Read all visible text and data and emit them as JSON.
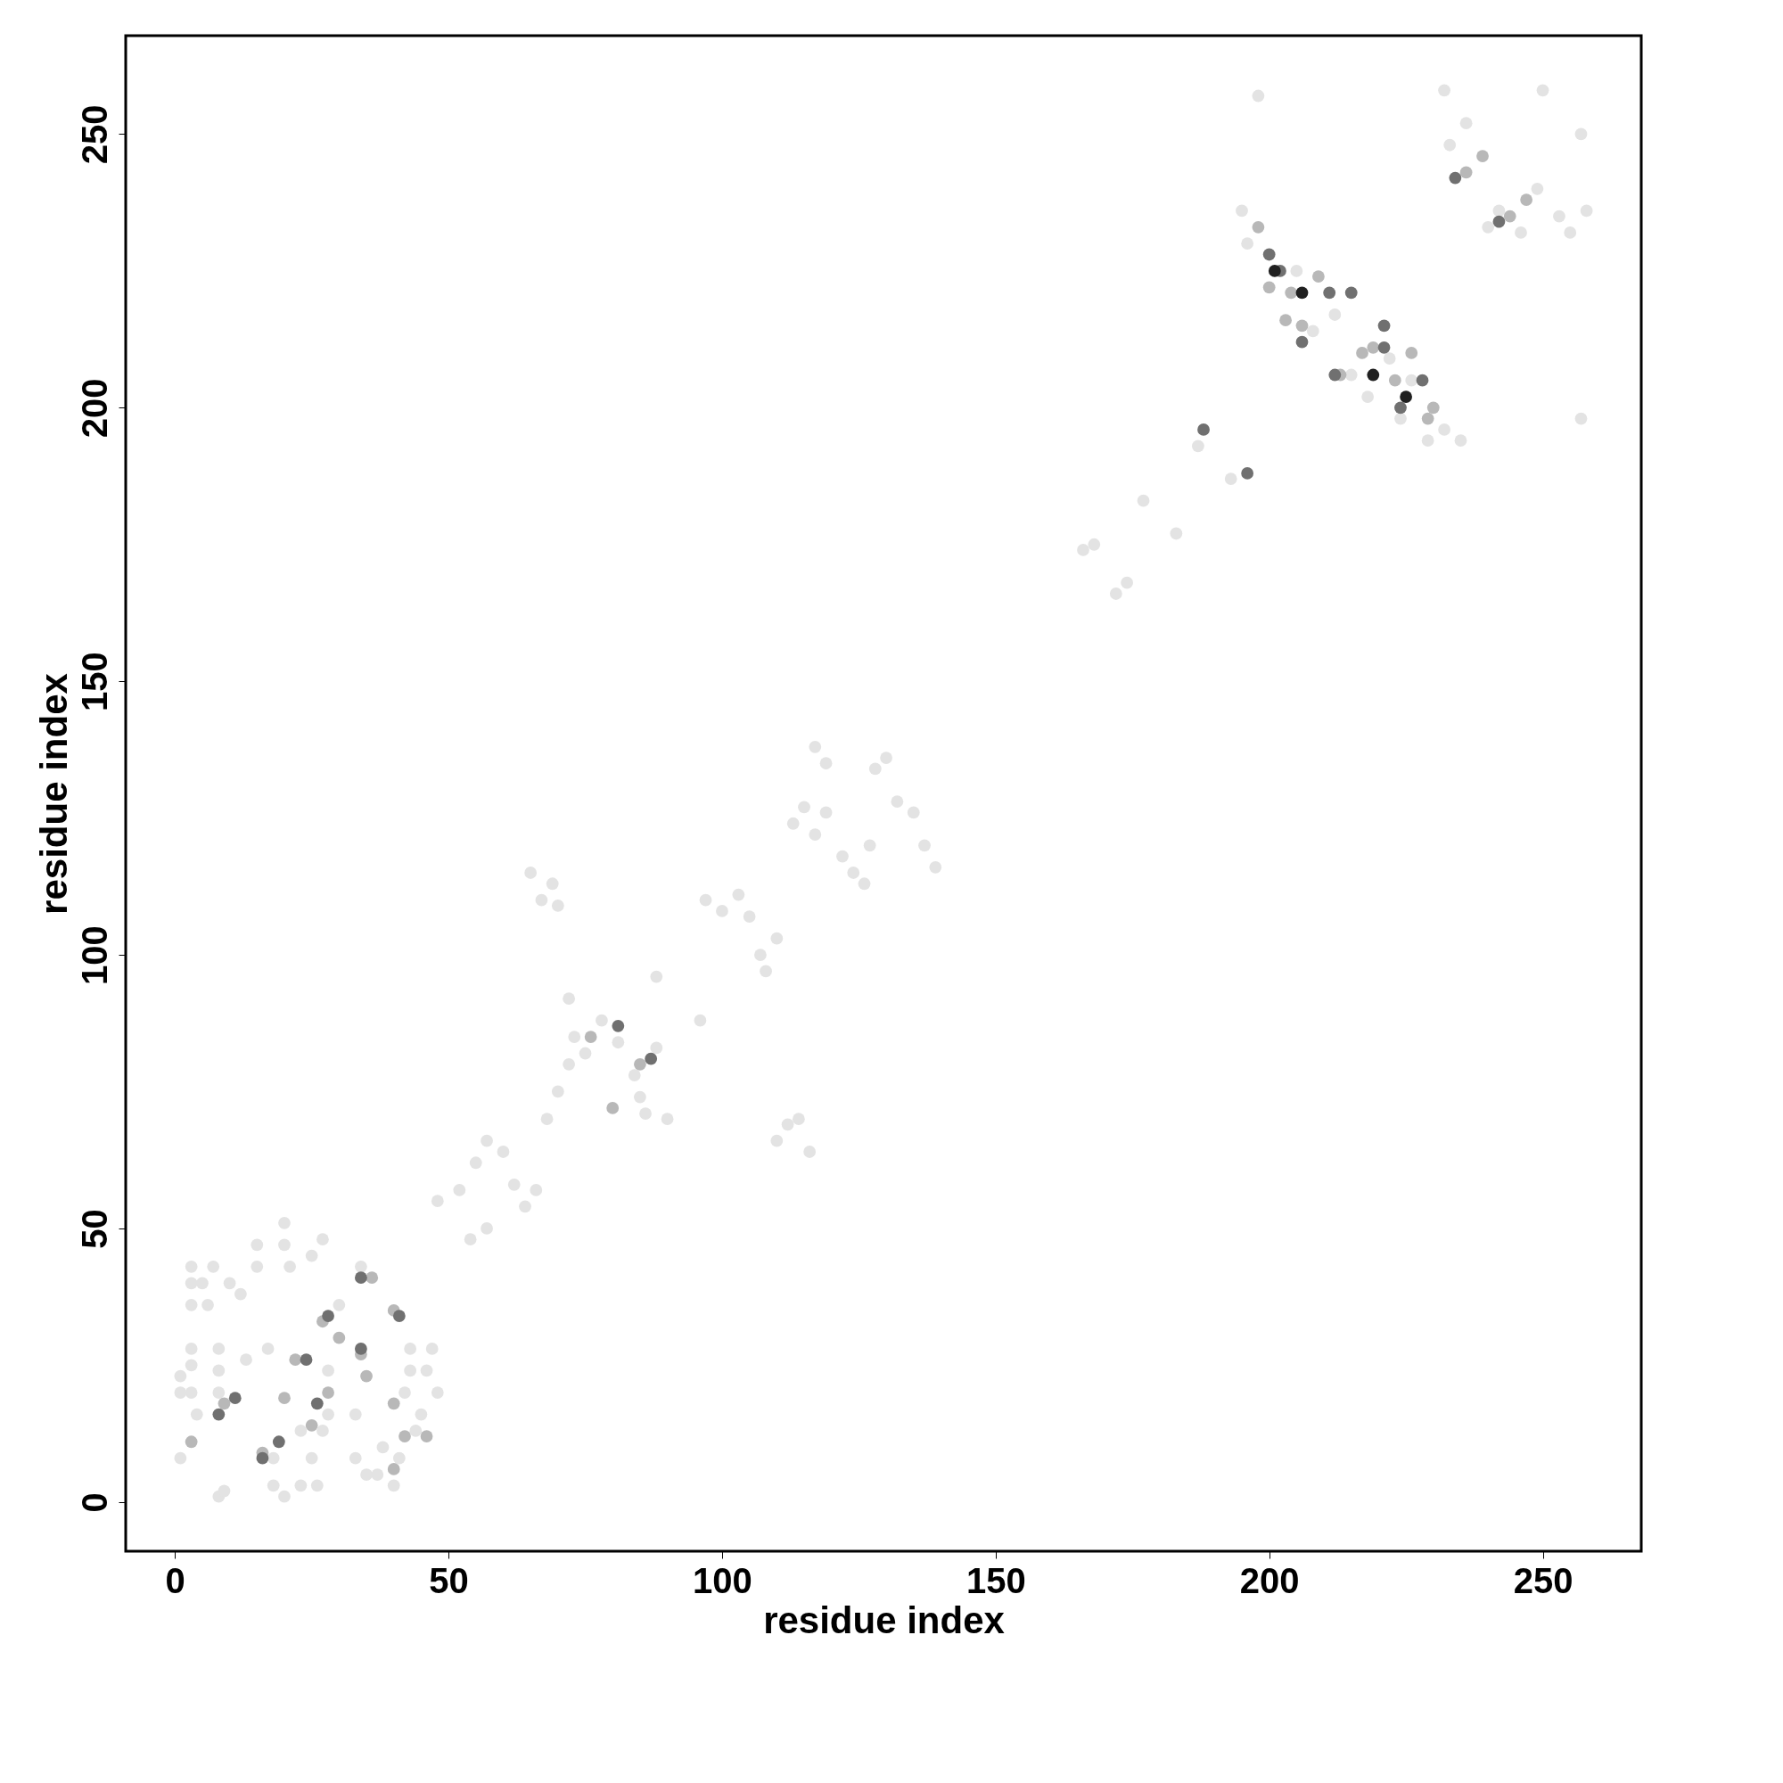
{
  "chart_data": {
    "type": "scatter",
    "xlabel": "residue index",
    "ylabel": "residue index",
    "xlim": [
      -9,
      268
    ],
    "ylim": [
      -9,
      268
    ],
    "xticks": [
      0,
      50,
      100,
      150,
      200,
      250
    ],
    "yticks": [
      0,
      50,
      100,
      150,
      200,
      250
    ],
    "grid": false,
    "legend": false,
    "marker": "circle",
    "series": [
      {
        "color": "#e3e3e3",
        "x": [
          1,
          1,
          1,
          3,
          3,
          3,
          3,
          3,
          3,
          4,
          5,
          6,
          7,
          8,
          9,
          8,
          8,
          8,
          10,
          12,
          13,
          15,
          15,
          17,
          18,
          18,
          20,
          20,
          21,
          23,
          23,
          25,
          25,
          26,
          27,
          27,
          28,
          28,
          30,
          33,
          33,
          34,
          35,
          37,
          38,
          40,
          41,
          42,
          43,
          43,
          44,
          45,
          46,
          47,
          48,
          20,
          48,
          52,
          55,
          57,
          60,
          62,
          64,
          66,
          68,
          70,
          72,
          73,
          75,
          78,
          81,
          84,
          85,
          86,
          88,
          90,
          72,
          54,
          57,
          88,
          96,
          65,
          67,
          69,
          70,
          110,
          112,
          114,
          116,
          97,
          100,
          103,
          105,
          107,
          108,
          110,
          113,
          115,
          117,
          119,
          117,
          119,
          122,
          124,
          126,
          127,
          128,
          130,
          132,
          135,
          137,
          139,
          166,
          168,
          172,
          174,
          177,
          183,
          187,
          193,
          195,
          196,
          198,
          205,
          208,
          212,
          215,
          218,
          222,
          224,
          226,
          229,
          232,
          235,
          232,
          233,
          236,
          240,
          242,
          246,
          250,
          253,
          255,
          257,
          258,
          257,
          249
        ],
        "values": [
          23,
          20,
          8,
          43,
          40,
          36,
          28,
          25,
          20,
          16,
          40,
          36,
          43,
          1,
          2,
          28,
          24,
          20,
          40,
          38,
          26,
          43,
          47,
          28,
          3,
          8,
          1,
          47,
          43,
          3,
          13,
          8,
          45,
          3,
          48,
          13,
          24,
          16,
          36,
          16,
          8,
          43,
          5,
          5,
          10,
          3,
          8,
          20,
          28,
          24,
          13,
          16,
          24,
          28,
          20,
          51,
          55,
          57,
          62,
          66,
          64,
          58,
          54,
          57,
          70,
          75,
          80,
          85,
          82,
          88,
          84,
          78,
          74,
          71,
          83,
          70,
          92,
          48,
          50,
          96,
          88,
          115,
          110,
          113,
          109,
          66,
          69,
          70,
          64,
          110,
          108,
          111,
          107,
          100,
          97,
          103,
          124,
          127,
          122,
          126,
          138,
          135,
          118,
          115,
          113,
          120,
          134,
          136,
          128,
          126,
          120,
          116,
          174,
          175,
          166,
          168,
          183,
          177,
          193,
          187,
          236,
          230,
          257,
          225,
          214,
          217,
          206,
          202,
          209,
          198,
          205,
          194,
          196,
          194,
          258,
          248,
          252,
          233,
          236,
          232,
          258,
          235,
          232,
          250,
          236,
          198,
          240
        ]
      },
      {
        "color": "#b8b8b8",
        "x": [
          3,
          9,
          16,
          20,
          22,
          27,
          25,
          28,
          34,
          36,
          40,
          40,
          42,
          46,
          30,
          35,
          40,
          80,
          85,
          76,
          198,
          204,
          206,
          209,
          213,
          217,
          219,
          223,
          226,
          229,
          230,
          200,
          203,
          236,
          239,
          244,
          247
        ],
        "values": [
          11,
          18,
          9,
          19,
          26,
          33,
          14,
          20,
          27,
          41,
          35,
          18,
          12,
          12,
          30,
          23,
          6,
          72,
          80,
          85,
          233,
          221,
          215,
          224,
          206,
          210,
          211,
          205,
          210,
          198,
          200,
          222,
          216,
          243,
          246,
          235,
          238
        ]
      },
      {
        "color": "#707070",
        "x": [
          11,
          19,
          8,
          16,
          34,
          28,
          26,
          24,
          34,
          41,
          87,
          81,
          188,
          196,
          206,
          211,
          212,
          221,
          221,
          215,
          224,
          228,
          200,
          202,
          234,
          242
        ],
        "values": [
          19,
          11,
          16,
          8,
          28,
          34,
          18,
          26,
          41,
          34,
          81,
          87,
          196,
          188,
          212,
          221,
          206,
          211,
          215,
          221,
          200,
          205,
          228,
          225,
          242,
          234
        ]
      },
      {
        "color": "#202020",
        "x": [
          201,
          206,
          219,
          225
        ],
        "values": [
          225,
          221,
          206,
          202
        ]
      }
    ]
  }
}
